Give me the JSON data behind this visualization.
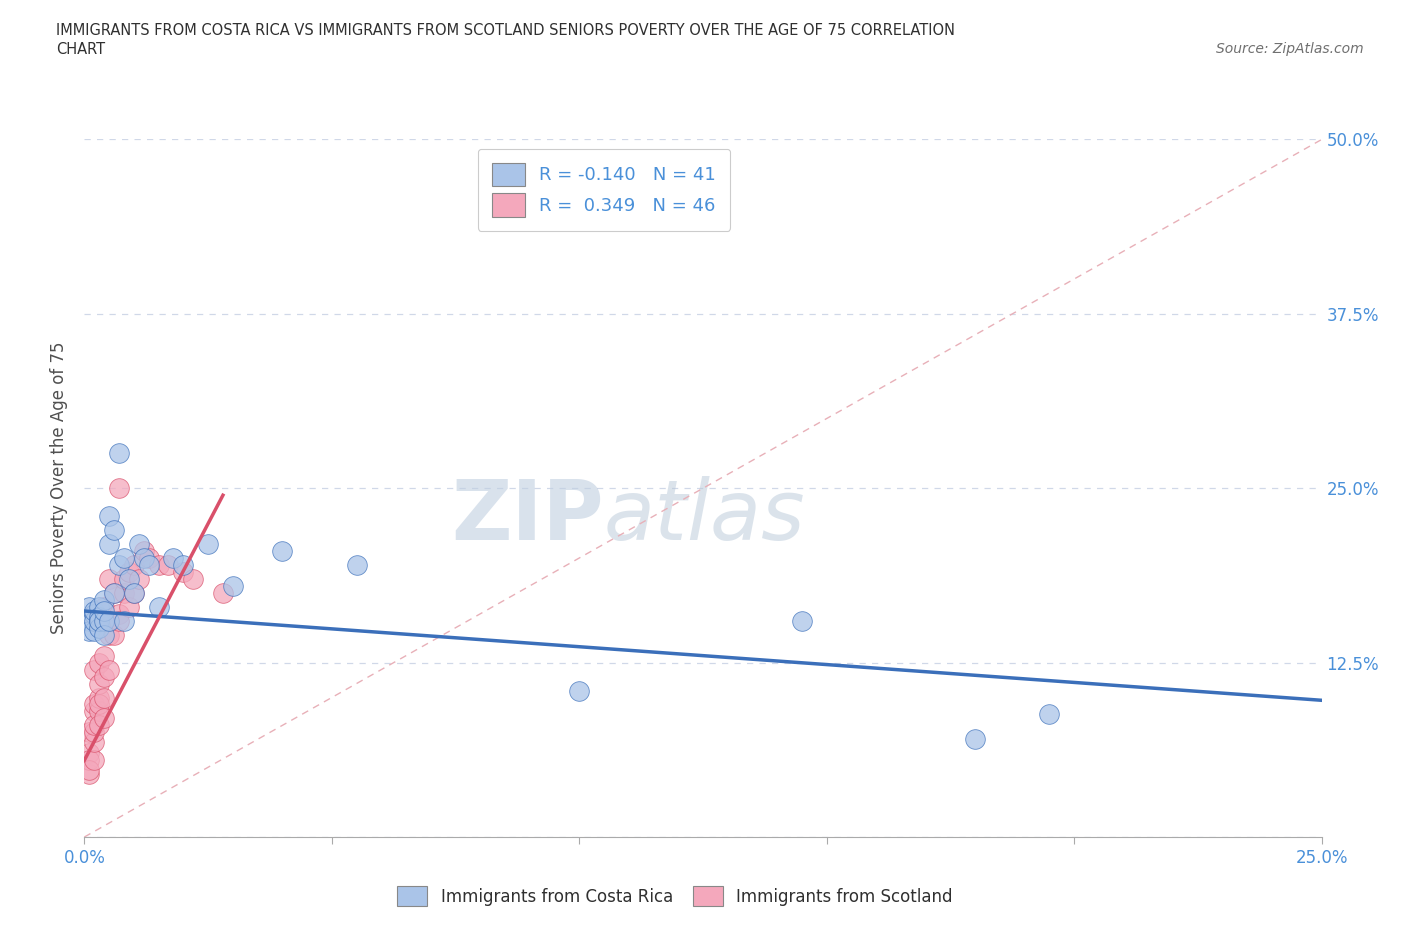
{
  "title_line1": "IMMIGRANTS FROM COSTA RICA VS IMMIGRANTS FROM SCOTLAND SENIORS POVERTY OVER THE AGE OF 75 CORRELATION",
  "title_line2": "CHART",
  "source_text": "Source: ZipAtlas.com",
  "ylabel": "Seniors Poverty Over the Age of 75",
  "watermark": "ZIPatlas",
  "legend_labels": [
    "Immigrants from Costa Rica",
    "Immigrants from Scotland"
  ],
  "series1_color": "#aac4e8",
  "series2_color": "#f4a8bc",
  "trendline1_color": "#3b6fba",
  "trendline2_color": "#d9506a",
  "refline_color": "#e8b0b8",
  "R1": -0.14,
  "N1": 41,
  "R2": 0.349,
  "N2": 46,
  "xlim": [
    0,
    0.25
  ],
  "ylim": [
    0,
    0.5
  ],
  "xticks": [
    0.0,
    0.25
  ],
  "yticks": [
    0.0,
    0.125,
    0.25,
    0.375,
    0.5
  ],
  "xtick_labels_left": "0.0%",
  "xtick_labels_right": "25.0%",
  "ytick_labels": [
    "",
    "12.5%",
    "25.0%",
    "37.5%",
    "50.0%"
  ],
  "series1_x": [
    0.001,
    0.001,
    0.001,
    0.002,
    0.002,
    0.002,
    0.002,
    0.003,
    0.003,
    0.003,
    0.003,
    0.003,
    0.004,
    0.004,
    0.004,
    0.004,
    0.005,
    0.005,
    0.005,
    0.006,
    0.006,
    0.007,
    0.007,
    0.008,
    0.008,
    0.009,
    0.01,
    0.011,
    0.012,
    0.013,
    0.015,
    0.018,
    0.02,
    0.025,
    0.03,
    0.04,
    0.055,
    0.1,
    0.145,
    0.18,
    0.195
  ],
  "series1_y": [
    0.155,
    0.165,
    0.148,
    0.16,
    0.148,
    0.155,
    0.162,
    0.155,
    0.165,
    0.158,
    0.15,
    0.155,
    0.155,
    0.17,
    0.145,
    0.162,
    0.21,
    0.23,
    0.155,
    0.175,
    0.22,
    0.275,
    0.195,
    0.2,
    0.155,
    0.185,
    0.175,
    0.21,
    0.2,
    0.195,
    0.165,
    0.2,
    0.195,
    0.21,
    0.18,
    0.205,
    0.195,
    0.105,
    0.155,
    0.07,
    0.088
  ],
  "series2_x": [
    0.001,
    0.001,
    0.001,
    0.001,
    0.001,
    0.002,
    0.002,
    0.002,
    0.002,
    0.002,
    0.002,
    0.002,
    0.003,
    0.003,
    0.003,
    0.003,
    0.003,
    0.003,
    0.004,
    0.004,
    0.004,
    0.004,
    0.004,
    0.005,
    0.005,
    0.005,
    0.005,
    0.006,
    0.006,
    0.007,
    0.007,
    0.007,
    0.008,
    0.008,
    0.009,
    0.009,
    0.01,
    0.01,
    0.011,
    0.012,
    0.013,
    0.015,
    0.017,
    0.02,
    0.022,
    0.028
  ],
  "series2_y": [
    0.045,
    0.06,
    0.055,
    0.075,
    0.048,
    0.055,
    0.068,
    0.075,
    0.09,
    0.095,
    0.12,
    0.08,
    0.09,
    0.1,
    0.11,
    0.125,
    0.08,
    0.095,
    0.1,
    0.115,
    0.13,
    0.085,
    0.165,
    0.145,
    0.12,
    0.155,
    0.185,
    0.145,
    0.175,
    0.16,
    0.155,
    0.25,
    0.175,
    0.185,
    0.165,
    0.19,
    0.175,
    0.195,
    0.185,
    0.205,
    0.2,
    0.195,
    0.195,
    0.19,
    0.185,
    0.175
  ],
  "trendline1_x_start": 0.0,
  "trendline1_x_end": 0.25,
  "trendline1_y_start": 0.162,
  "trendline1_y_end": 0.098,
  "trendline2_x_start": 0.0,
  "trendline2_x_end": 0.028,
  "trendline2_y_start": 0.055,
  "trendline2_y_end": 0.245,
  "background_color": "#ffffff",
  "grid_color": "#d0d8e8",
  "title_color": "#303030",
  "axis_label_color": "#505050",
  "tick_label_color_y": "#4a90d9",
  "tick_label_color_x": "#4a90d9",
  "watermark_color": "#c8d8ec",
  "watermark_fontsize": 60
}
